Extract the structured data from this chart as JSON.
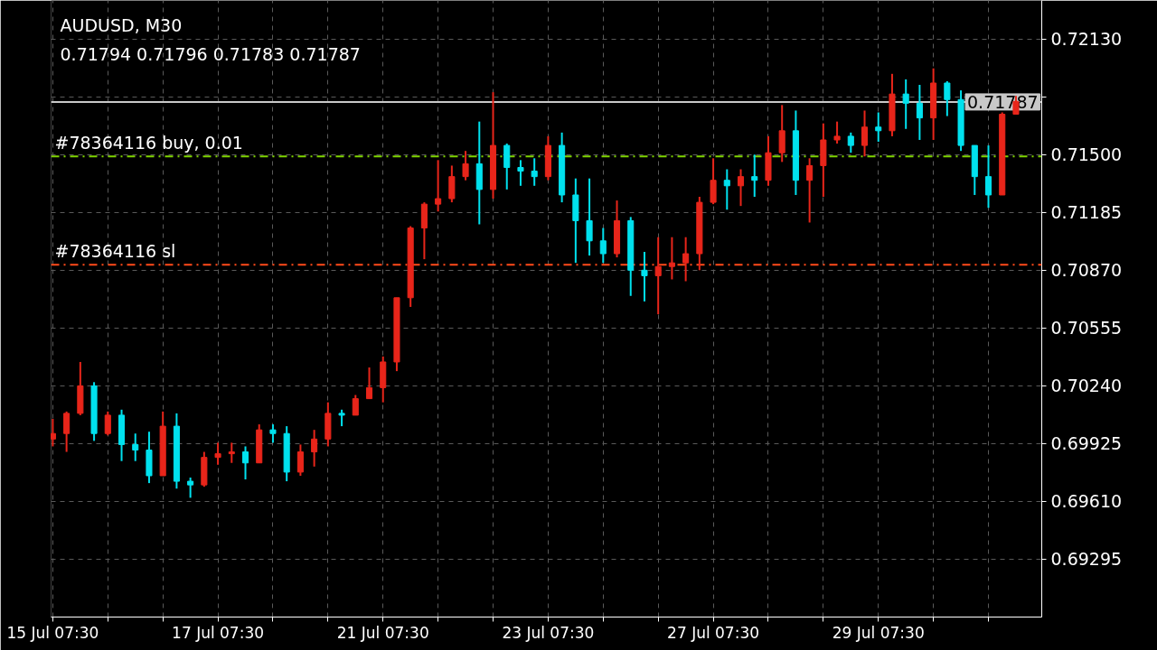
{
  "chart_data": {
    "type": "candlestick",
    "title": "AUDUSD, M30",
    "subtitle": "0.71794 0.71796 0.71783 0.71787",
    "categories": [
      "15 Jul 07:30",
      null,
      null,
      null,
      null,
      null,
      null,
      null,
      null,
      null,
      null,
      null,
      "17 Jul 07:30",
      null,
      null,
      null,
      null,
      null,
      null,
      null,
      null,
      null,
      null,
      null,
      "21 Jul 07:30",
      null,
      null,
      null,
      null,
      null,
      null,
      null,
      null,
      null,
      null,
      null,
      "23 Jul 07:30",
      null,
      null,
      null,
      null,
      null,
      null,
      null,
      null,
      null,
      null,
      null,
      "27 Jul 07:30",
      null,
      null,
      null,
      null,
      null,
      null,
      null,
      null,
      null,
      null,
      null,
      "29 Jul 07:30",
      null,
      null,
      null,
      null,
      null,
      null,
      null,
      null,
      null,
      null
    ],
    "ohlc": [
      [
        0.6995,
        0.7006,
        0.6991,
        0.6998
      ],
      [
        0.6998,
        0.701,
        0.6988,
        0.7009
      ],
      [
        0.7009,
        0.7037,
        0.7008,
        0.7024
      ],
      [
        0.7024,
        0.7026,
        0.6994,
        0.6998
      ],
      [
        0.6998,
        0.701,
        0.6997,
        0.7008
      ],
      [
        0.7008,
        0.7011,
        0.6983,
        0.6992
      ],
      [
        0.6992,
        0.6998,
        0.6983,
        0.6989
      ],
      [
        0.6989,
        0.6999,
        0.6971,
        0.6975
      ],
      [
        0.6975,
        0.701,
        0.6975,
        0.7002
      ],
      [
        0.7002,
        0.7009,
        0.6968,
        0.6972
      ],
      [
        0.6972,
        0.6974,
        0.6963,
        0.697
      ],
      [
        0.697,
        0.6988,
        0.6969,
        0.6985
      ],
      [
        0.6985,
        0.6993,
        0.6981,
        0.6987
      ],
      [
        0.6987,
        0.6993,
        0.6982,
        0.6988
      ],
      [
        0.6988,
        0.6991,
        0.6973,
        0.6982
      ],
      [
        0.6982,
        0.7003,
        0.6982,
        0.7
      ],
      [
        0.7,
        0.7003,
        0.6993,
        0.6998
      ],
      [
        0.6998,
        0.7002,
        0.6972,
        0.6977
      ],
      [
        0.6977,
        0.6992,
        0.6975,
        0.6988
      ],
      [
        0.6988,
        0.7,
        0.698,
        0.6995
      ],
      [
        0.6995,
        0.7015,
        0.6991,
        0.7009
      ],
      [
        0.7009,
        0.7011,
        0.7002,
        0.7008
      ],
      [
        0.7008,
        0.7019,
        0.7008,
        0.7017
      ],
      [
        0.7017,
        0.7034,
        0.7017,
        0.7023
      ],
      [
        0.7023,
        0.704,
        0.7015,
        0.7037
      ],
      [
        0.7037,
        0.7072,
        0.7032,
        0.7072
      ],
      [
        0.7072,
        0.7111,
        0.7067,
        0.711
      ],
      [
        0.711,
        0.7124,
        0.7093,
        0.7123
      ],
      [
        0.7123,
        0.7147,
        0.7119,
        0.7126
      ],
      [
        0.7126,
        0.7144,
        0.7124,
        0.7138
      ],
      [
        0.7138,
        0.7152,
        0.7136,
        0.7145
      ],
      [
        0.7145,
        0.7168,
        0.7112,
        0.7131
      ],
      [
        0.7131,
        0.7184,
        0.7126,
        0.7155
      ],
      [
        0.7155,
        0.7156,
        0.7131,
        0.7143
      ],
      [
        0.7143,
        0.7147,
        0.7133,
        0.7141
      ],
      [
        0.7141,
        0.7148,
        0.7133,
        0.7138
      ],
      [
        0.7138,
        0.716,
        0.7136,
        0.7155
      ],
      [
        0.7155,
        0.7162,
        0.7124,
        0.7128
      ],
      [
        0.7128,
        0.7137,
        0.7091,
        0.7114
      ],
      [
        0.7114,
        0.7137,
        0.7095,
        0.7103
      ],
      [
        0.7103,
        0.711,
        0.7091,
        0.7096
      ],
      [
        0.7096,
        0.7125,
        0.7094,
        0.7114
      ],
      [
        0.7114,
        0.7116,
        0.7073,
        0.7087
      ],
      [
        0.7087,
        0.7097,
        0.707,
        0.7084
      ],
      [
        0.7084,
        0.7105,
        0.7063,
        0.7089
      ],
      [
        0.7089,
        0.7105,
        0.7082,
        0.7091
      ],
      [
        0.7091,
        0.7105,
        0.7081,
        0.7096
      ],
      [
        0.7096,
        0.7127,
        0.7087,
        0.7124
      ],
      [
        0.7124,
        0.7148,
        0.7123,
        0.7136
      ],
      [
        0.7136,
        0.7142,
        0.712,
        0.7133
      ],
      [
        0.7133,
        0.7142,
        0.7122,
        0.7138
      ],
      [
        0.7138,
        0.715,
        0.7127,
        0.7136
      ],
      [
        0.7136,
        0.716,
        0.7133,
        0.7151
      ],
      [
        0.7151,
        0.7177,
        0.7146,
        0.7163
      ],
      [
        0.7163,
        0.7174,
        0.7128,
        0.7136
      ],
      [
        0.7136,
        0.7148,
        0.7113,
        0.7144
      ],
      [
        0.7144,
        0.7167,
        0.7127,
        0.7158
      ],
      [
        0.7158,
        0.7168,
        0.7156,
        0.716
      ],
      [
        0.716,
        0.7162,
        0.7151,
        0.7155
      ],
      [
        0.7155,
        0.7174,
        0.7149,
        0.7165
      ],
      [
        0.7165,
        0.7173,
        0.7157,
        0.7163
      ],
      [
        0.7163,
        0.7194,
        0.716,
        0.7183
      ],
      [
        0.7183,
        0.7191,
        0.7164,
        0.7178
      ],
      [
        0.7178,
        0.7188,
        0.7158,
        0.717
      ],
      [
        0.717,
        0.7197,
        0.7158,
        0.7189
      ],
      [
        0.7189,
        0.719,
        0.7171,
        0.718
      ],
      [
        0.718,
        0.7185,
        0.7152,
        0.7155
      ],
      [
        0.7155,
        0.7155,
        0.7128,
        0.7138
      ],
      [
        0.7138,
        0.7155,
        0.7121,
        0.7128
      ],
      [
        0.7128,
        0.7173,
        0.7128,
        0.7172
      ],
      [
        0.7172,
        0.7182,
        0.7172,
        0.7179
      ]
    ],
    "colors": [
      "#e8251a",
      "#e8251a",
      "#e8251a",
      "#00e1ee",
      "#e8251a",
      "#00e1ee",
      "#00e1ee",
      "#00e1ee",
      "#e8251a",
      "#00e1ee",
      "#00e1ee",
      "#e8251a",
      "#e8251a",
      "#e8251a",
      "#00e1ee",
      "#e8251a",
      "#00e1ee",
      "#00e1ee",
      "#e8251a",
      "#e8251a",
      "#e8251a",
      "#00e1ee",
      "#e8251a",
      "#e8251a",
      "#e8251a",
      "#e8251a",
      "#e8251a",
      "#e8251a",
      "#e8251a",
      "#e8251a",
      "#e8251a",
      "#00e1ee",
      "#e8251a",
      "#00e1ee",
      "#00e1ee",
      "#00e1ee",
      "#e8251a",
      "#00e1ee",
      "#00e1ee",
      "#00e1ee",
      "#00e1ee",
      "#e8251a",
      "#00e1ee",
      "#00e1ee",
      "#e8251a",
      "#e8251a",
      "#e8251a",
      "#e8251a",
      "#e8251a",
      "#00e1ee",
      "#e8251a",
      "#00e1ee",
      "#e8251a",
      "#e8251a",
      "#00e1ee",
      "#e8251a",
      "#e8251a",
      "#e8251a",
      "#00e1ee",
      "#e8251a",
      "#00e1ee",
      "#e8251a",
      "#00e1ee",
      "#00e1ee",
      "#e8251a",
      "#00e1ee",
      "#00e1ee",
      "#00e1ee",
      "#00e1ee",
      "#e8251a",
      "#e8251a"
    ],
    "ylim": [
      0.6898,
      0.7234
    ],
    "yticks": [
      {
        "value": 0.7213,
        "label": "0.72130"
      },
      {
        "value": 0.71815,
        "label": null
      },
      {
        "value": 0.715,
        "label": "0.71500"
      },
      0.71185,
      {
        "value": 0.7087,
        "label": "0.70870"
      },
      0.70555,
      {
        "value": 0.7024,
        "label": "0.70240"
      },
      0.69925,
      {
        "value": 0.6961,
        "label": "0.69610"
      },
      0.69295
    ],
    "ref_lines": [
      {
        "axis": "y",
        "value": 0.71787,
        "label": "0.71787",
        "color": "#c8c8c8",
        "line_style": "solid"
      },
      {
        "axis": "y",
        "value": 0.7149,
        "label": "#78364116 buy, 0.01",
        "color": "#7fd400",
        "line_style": "dashed"
      },
      {
        "axis": "y",
        "value": 0.709,
        "label": "#78364116 sl",
        "color": "#ff4a1a",
        "line_style": "dashed"
      }
    ],
    "grid": true
  }
}
